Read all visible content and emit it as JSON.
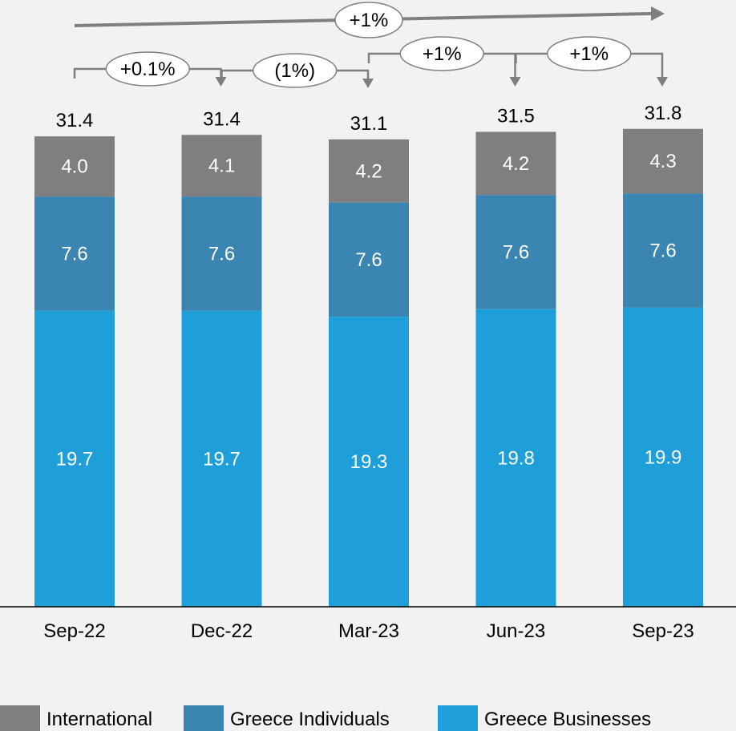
{
  "chart_data": {
    "type": "bar",
    "stacked": true,
    "categories": [
      "Sep-22",
      "Dec-22",
      "Mar-23",
      "Jun-23",
      "Sep-23"
    ],
    "series": [
      {
        "name": "Greece Businesses",
        "color": "#1f9fd9",
        "values": [
          19.7,
          19.7,
          19.3,
          19.8,
          19.9
        ],
        "labels": [
          "19.7",
          "19.7",
          "19.3",
          "19.8",
          "19.9"
        ]
      },
      {
        "name": "Greece Individuals",
        "color": "#3a85b2",
        "values": [
          7.6,
          7.6,
          7.6,
          7.6,
          7.6
        ],
        "labels": [
          "7.6",
          "7.6",
          "7.6",
          "7.6",
          "7.6"
        ]
      },
      {
        "name": "International",
        "color": "#7f7f7f",
        "values": [
          4.0,
          4.1,
          4.2,
          4.2,
          4.3
        ],
        "labels": [
          "4.0",
          "4.1",
          "4.2",
          "4.2",
          "4.3"
        ]
      }
    ],
    "totals": [
      31.4,
      31.4,
      31.1,
      31.5,
      31.8
    ],
    "total_labels": [
      "31.4",
      "31.4",
      "31.1",
      "31.5",
      "31.8"
    ],
    "period_changes": [
      "+0.1%",
      "(1%)",
      "+1%",
      "+1%"
    ],
    "overall_change": "+1%",
    "legend": {
      "position": "bottom",
      "order": [
        "International",
        "Greece Individuals",
        "Greece Businesses"
      ]
    },
    "grid": false,
    "ylim": [
      0,
      31.8
    ],
    "title": "",
    "xlabel": "",
    "ylabel": ""
  }
}
